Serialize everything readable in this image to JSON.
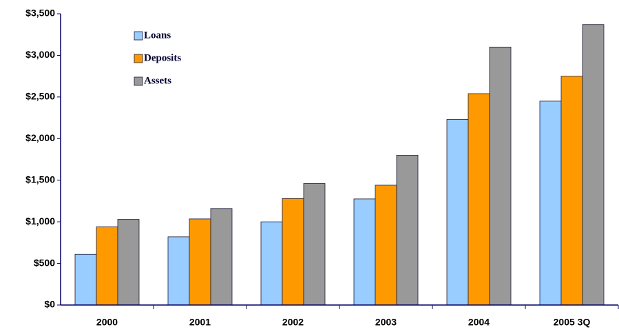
{
  "chart_data": {
    "type": "bar",
    "categories": [
      "2000",
      "2001",
      "2002",
      "2003",
      "2004",
      "2005 3Q"
    ],
    "series": [
      {
        "name": "Loans",
        "color": "#99ccff",
        "values": [
          610,
          820,
          1000,
          1275,
          2230,
          2450
        ]
      },
      {
        "name": "Deposits",
        "color": "#ff9900",
        "values": [
          940,
          1035,
          1280,
          1440,
          2540,
          2750
        ]
      },
      {
        "name": "Assets",
        "color": "#999999",
        "values": [
          1030,
          1160,
          1460,
          1800,
          3100,
          3370
        ]
      }
    ],
    "ylim": [
      0,
      3500
    ],
    "yticks": [
      {
        "value": 0,
        "label": "$0"
      },
      {
        "value": 500,
        "label": "$500"
      },
      {
        "value": 1000,
        "label": "$1,000"
      },
      {
        "value": 1500,
        "label": "$1,500"
      },
      {
        "value": 2000,
        "label": "$2,000"
      },
      {
        "value": 2500,
        "label": "$2,500"
      },
      {
        "value": 3000,
        "label": "$3,000"
      },
      {
        "value": 3500,
        "label": "$3,500"
      }
    ],
    "legend": "upper-left",
    "grid": false
  }
}
